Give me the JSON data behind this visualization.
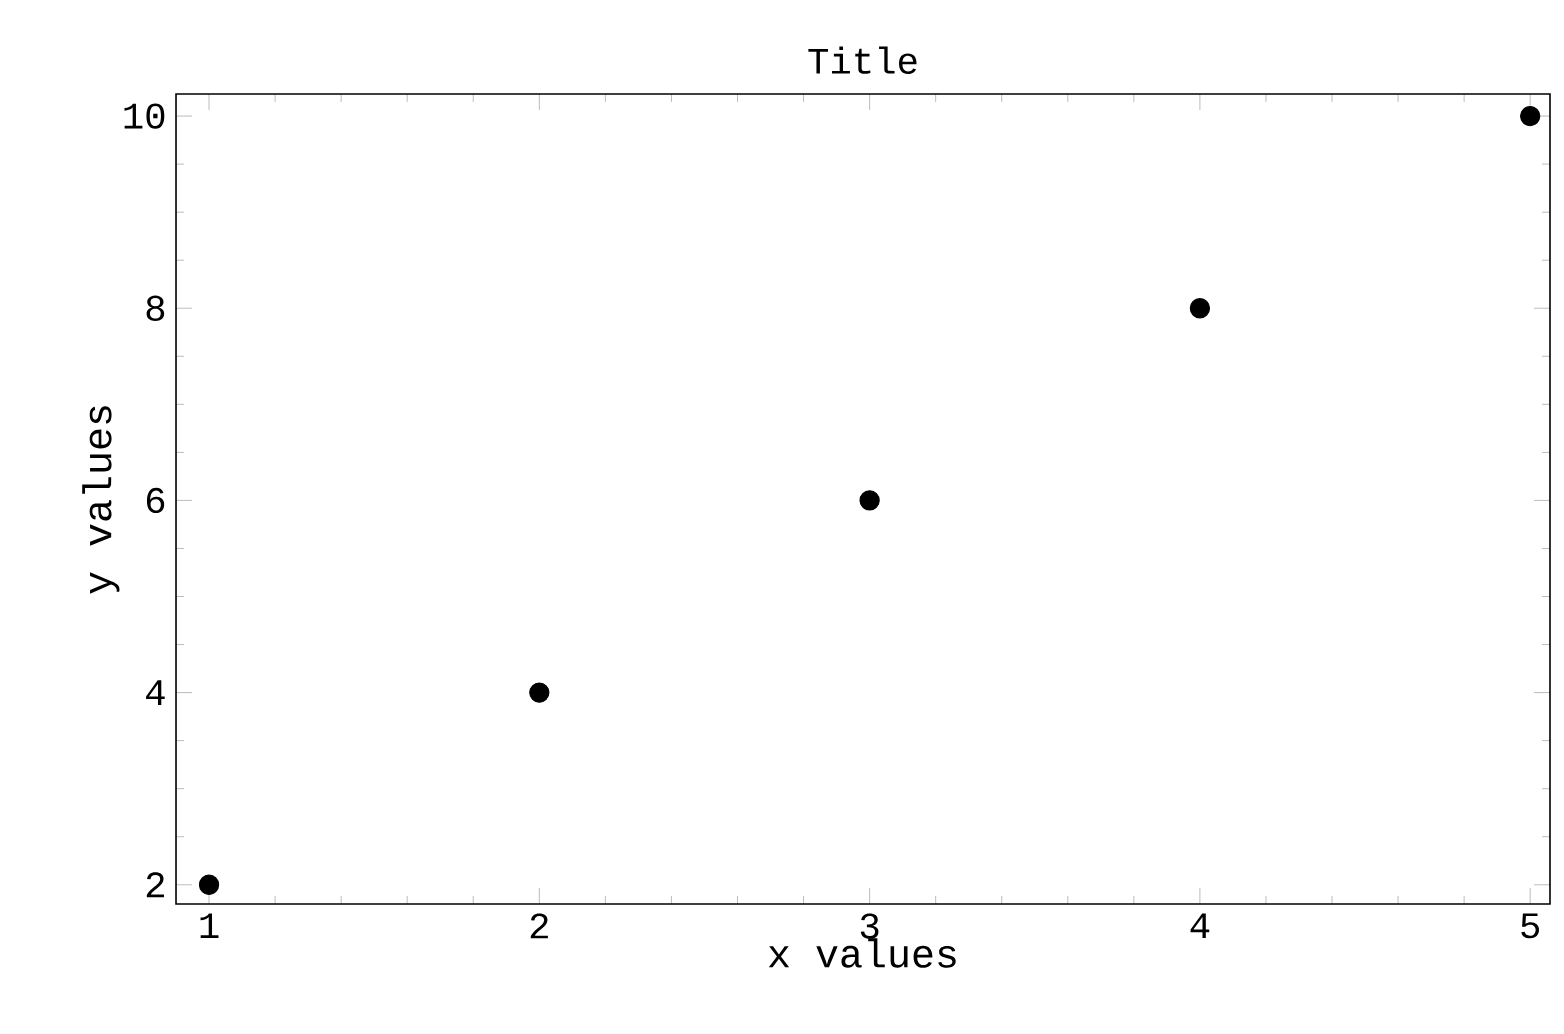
{
  "chart_data": {
    "type": "scatter",
    "title": "Title",
    "xlabel": "x values",
    "ylabel": "y values",
    "x": [
      1,
      2,
      3,
      4,
      5
    ],
    "series": [
      {
        "color": "#000000",
        "values": [
          2,
          4,
          6,
          8,
          10
        ]
      }
    ],
    "xlim": [
      0.9,
      5.06
    ],
    "ylim": [
      1.8,
      10.23
    ],
    "xticks": [
      1,
      2,
      3,
      4,
      5
    ],
    "yticks": [
      2,
      4,
      6,
      8,
      10
    ],
    "marker": "circle"
  }
}
